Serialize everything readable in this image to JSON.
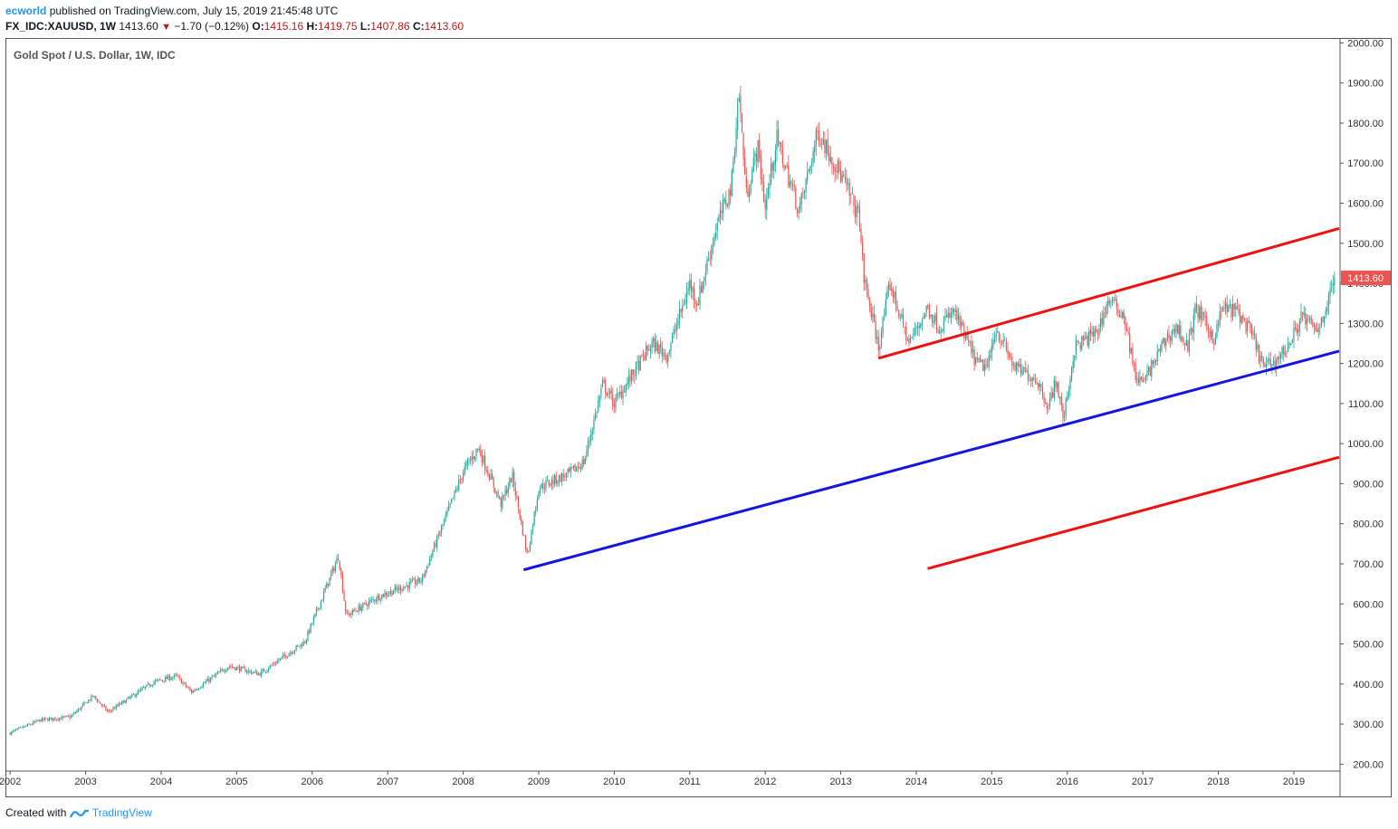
{
  "header": {
    "author": "ecworld",
    "published": "published on TradingView.com, July 15, 2019 21:45:48 UTC",
    "symbol": "FX_IDC:XAUUSD, 1W",
    "last": "1413.60",
    "change": "−1.70 (−0.12%)",
    "o_label": "O:",
    "o_value": "1415.16",
    "h_label": "H:",
    "h_value": "1419.75",
    "l_label": "L:",
    "l_value": "1407.86",
    "c_label": "C:",
    "c_value": "1413.60"
  },
  "footer": {
    "created": "Created with",
    "brand": "TradingView"
  },
  "colors": {
    "up": "#26a69a",
    "down": "#ef5350",
    "channel_red": "#ee1111",
    "support_blue": "#1515dd",
    "last_price_bg": "#ef5350"
  },
  "chart_data": {
    "type": "candlestick",
    "title": "Gold Spot / U.S. Dollar, 1W, IDC",
    "y_axis": {
      "ticks": [
        200,
        300,
        400,
        500,
        600,
        700,
        800,
        900,
        1000,
        1100,
        1200,
        1300,
        1400,
        1500,
        1600,
        1700,
        1800,
        1900,
        2000
      ],
      "labels": [
        "200.00",
        "300.00",
        "400.00",
        "500.00",
        "600.00",
        "700.00",
        "800.00",
        "900.00",
        "1000.00",
        "1100.00",
        "1200.00",
        "1300.00",
        "1400.00",
        "1500.00",
        "1600.00",
        "1700.00",
        "1800.00",
        "1900.00",
        "2000.00"
      ],
      "range": [
        185,
        2010
      ]
    },
    "x_axis": {
      "labels": [
        "2002",
        "2003",
        "2004",
        "2005",
        "2006",
        "2007",
        "2008",
        "2009",
        "2010",
        "2011",
        "2012",
        "2013",
        "2014",
        "2015",
        "2016",
        "2017",
        "2018",
        "2019"
      ],
      "range": [
        2001.95,
        2019.6
      ]
    },
    "last_price_label": "1413.60",
    "last_price": 1413.6,
    "price_path": [
      [
        2002.0,
        278
      ],
      [
        2002.4,
        310
      ],
      [
        2002.8,
        318
      ],
      [
        2003.1,
        370
      ],
      [
        2003.3,
        330
      ],
      [
        2003.9,
        405
      ],
      [
        2004.2,
        420
      ],
      [
        2004.4,
        380
      ],
      [
        2004.9,
        445
      ],
      [
        2005.3,
        425
      ],
      [
        2005.9,
        505
      ],
      [
        2006.35,
        720
      ],
      [
        2006.45,
        570
      ],
      [
        2006.9,
        620
      ],
      [
        2007.45,
        660
      ],
      [
        2008.0,
        930
      ],
      [
        2008.2,
        990
      ],
      [
        2008.5,
        850
      ],
      [
        2008.65,
        920
      ],
      [
        2008.85,
        720
      ],
      [
        2009.0,
        890
      ],
      [
        2009.4,
        925
      ],
      [
        2009.6,
        955
      ],
      [
        2009.85,
        1150
      ],
      [
        2010.0,
        1100
      ],
      [
        2010.5,
        1250
      ],
      [
        2010.7,
        1220
      ],
      [
        2011.0,
        1400
      ],
      [
        2011.1,
        1350
      ],
      [
        2011.35,
        1540
      ],
      [
        2011.55,
        1640
      ],
      [
        2011.65,
        1880
      ],
      [
        2011.75,
        1620
      ],
      [
        2011.9,
        1740
      ],
      [
        2012.0,
        1590
      ],
      [
        2012.15,
        1760
      ],
      [
        2012.45,
        1580
      ],
      [
        2012.7,
        1780
      ],
      [
        2012.95,
        1690
      ],
      [
        2013.05,
        1650
      ],
      [
        2013.25,
        1560
      ],
      [
        2013.3,
        1420
      ],
      [
        2013.5,
        1240
      ],
      [
        2013.65,
        1400
      ],
      [
        2013.9,
        1250
      ],
      [
        2014.15,
        1340
      ],
      [
        2014.3,
        1290
      ],
      [
        2014.5,
        1330
      ],
      [
        2014.8,
        1200
      ],
      [
        2014.95,
        1190
      ],
      [
        2015.05,
        1290
      ],
      [
        2015.3,
        1190
      ],
      [
        2015.6,
        1160
      ],
      [
        2015.75,
        1090
      ],
      [
        2015.85,
        1160
      ],
      [
        2015.95,
        1060
      ],
      [
        2016.1,
        1240
      ],
      [
        2016.4,
        1280
      ],
      [
        2016.55,
        1360
      ],
      [
        2016.75,
        1320
      ],
      [
        2016.9,
        1170
      ],
      [
        2017.0,
        1150
      ],
      [
        2017.3,
        1260
      ],
      [
        2017.45,
        1290
      ],
      [
        2017.6,
        1240
      ],
      [
        2017.7,
        1340
      ],
      [
        2017.95,
        1260
      ],
      [
        2018.05,
        1340
      ],
      [
        2018.25,
        1330
      ],
      [
        2018.45,
        1270
      ],
      [
        2018.6,
        1190
      ],
      [
        2018.75,
        1205
      ],
      [
        2018.95,
        1250
      ],
      [
        2019.1,
        1320
      ],
      [
        2019.3,
        1280
      ],
      [
        2019.45,
        1350
      ],
      [
        2019.53,
        1413.6
      ]
    ],
    "trend_lines": [
      {
        "name": "upper-channel",
        "color": "red",
        "points": [
          [
            2013.5,
            1213
          ],
          [
            2019.6,
            1537
          ]
        ]
      },
      {
        "name": "support",
        "color": "blue",
        "points": [
          [
            2008.8,
            685
          ],
          [
            2019.6,
            1231
          ]
        ]
      },
      {
        "name": "lower-channel",
        "color": "red",
        "points": [
          [
            2014.15,
            688
          ],
          [
            2019.6,
            966
          ]
        ]
      }
    ],
    "grid": false,
    "legend": "none"
  }
}
